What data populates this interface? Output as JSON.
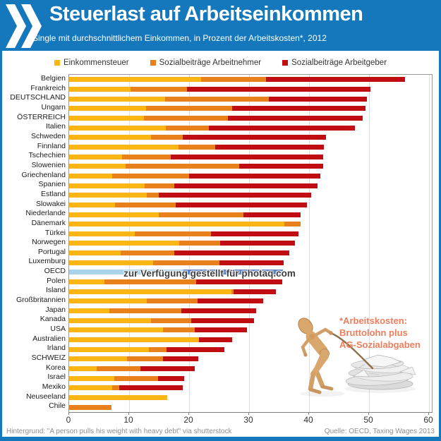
{
  "header": {
    "title": "Steuerlast auf Arbeitseinkommen",
    "subtitle": "Single mit durchschnittlichem Einkommen, in Prozent der Arbeitskosten*, 2012",
    "logo": "oecd-chevrons",
    "background_color": "#1578BC"
  },
  "legend": [
    {
      "label": "Einkommensteuer",
      "color": "#FBB616"
    },
    {
      "label": "Sozialbeiträge Arbeitnehmer",
      "color": "#E8801B"
    },
    {
      "label": "Sozialbeiträge Arbeitgeber",
      "color": "#C00D12"
    }
  ],
  "chart_data": {
    "type": "bar",
    "orientation": "horizontal",
    "stacked": true,
    "series_names": [
      "Einkommensteuer",
      "Sozialbeiträge Arbeitnehmer",
      "Sozialbeiträge Arbeitgeber"
    ],
    "series_colors": [
      "#FBB616",
      "#E8801B",
      "#C00D12"
    ],
    "xlabel": "",
    "ylabel": "",
    "xlim": [
      0,
      60
    ],
    "x_ticks": [
      0,
      10,
      20,
      30,
      40,
      50,
      60
    ],
    "grid": "vertical-light",
    "rows": [
      {
        "label": "Belgien",
        "values": [
          22.0,
          10.8,
          23.2
        ]
      },
      {
        "label": "Frankreich",
        "values": [
          10.2,
          9.5,
          30.5
        ]
      },
      {
        "label": "DEUTSCHLAND",
        "values": [
          16.0,
          17.3,
          16.4
        ]
      },
      {
        "label": "Ungarn",
        "values": [
          12.8,
          14.4,
          22.2
        ]
      },
      {
        "label": "ÖSTERREICH",
        "values": [
          12.5,
          14.0,
          22.4
        ]
      },
      {
        "label": "Italien",
        "values": [
          16.1,
          7.2,
          24.3
        ]
      },
      {
        "label": "Schweden",
        "values": [
          13.6,
          5.3,
          23.9
        ]
      },
      {
        "label": "Finnland",
        "values": [
          18.2,
          6.1,
          18.2
        ]
      },
      {
        "label": "Tschechien",
        "values": [
          8.8,
          8.2,
          25.4
        ]
      },
      {
        "label": "Slowenien",
        "values": [
          9.4,
          19.0,
          13.9
        ]
      },
      {
        "label": "Griechenland",
        "values": [
          7.2,
          12.8,
          21.9
        ]
      },
      {
        "label": "Spanien",
        "values": [
          12.6,
          4.9,
          23.9
        ]
      },
      {
        "label": "Estland",
        "values": [
          12.9,
          2.1,
          25.4
        ]
      },
      {
        "label": "Slowakei",
        "values": [
          7.6,
          10.2,
          21.8
        ]
      },
      {
        "label": "Niederlande",
        "values": [
          14.9,
          14.2,
          9.5
        ]
      },
      {
        "label": "Dänemark",
        "values": [
          35.9,
          2.7,
          0.0
        ]
      },
      {
        "label": "Türkei",
        "values": [
          10.9,
          12.8,
          14.5
        ]
      },
      {
        "label": "Norwegen",
        "values": [
          18.4,
          6.8,
          12.4
        ]
      },
      {
        "label": "Portugal",
        "values": [
          8.6,
          8.9,
          19.2
        ]
      },
      {
        "label": "Luxemburg",
        "values": [
          14.0,
          11.0,
          10.8
        ]
      },
      {
        "label": "OECD",
        "highlight": true,
        "total": 35.6,
        "split": 19.0,
        "colors": [
          "#A9D4E9",
          "#5E82C4"
        ]
      },
      {
        "label": "Polen",
        "values": [
          5.9,
          15.3,
          14.3
        ]
      },
      {
        "label": "Island",
        "values": [
          27.1,
          0.3,
          7.1
        ]
      },
      {
        "label": "Großbritannien",
        "values": [
          12.9,
          8.5,
          10.9
        ]
      },
      {
        "label": "Japan",
        "values": [
          6.7,
          12.0,
          12.5
        ]
      },
      {
        "label": "Kanada",
        "values": [
          13.7,
          6.6,
          10.5
        ]
      },
      {
        "label": "USA",
        "values": [
          15.6,
          5.3,
          8.7
        ]
      },
      {
        "label": "Australien",
        "values": [
          21.6,
          0.0,
          5.6
        ]
      },
      {
        "label": "Irland",
        "values": [
          13.3,
          2.9,
          9.7
        ]
      },
      {
        "label": "SCHWEIZ",
        "values": [
          9.7,
          5.9,
          5.9
        ]
      },
      {
        "label": "Korea",
        "values": [
          4.6,
          7.3,
          9.1
        ]
      },
      {
        "label": "Israel",
        "values": [
          7.5,
          7.3,
          4.4
        ]
      },
      {
        "label": "Mexiko",
        "values": [
          7.2,
          1.2,
          10.6
        ]
      },
      {
        "label": "Neuseeland",
        "values": [
          16.4,
          0.0,
          0.0
        ]
      },
      {
        "label": "Chile",
        "values": [
          0.0,
          7.0,
          0.0
        ]
      }
    ]
  },
  "watermark": {
    "text": "zur Verfügung gestellt für photaq.com"
  },
  "annotation": {
    "lines": [
      "*Arbeitskosten:",
      "Bruttolohn plus",
      "AG-Sozialabgaben"
    ],
    "color": "#EF7D5B"
  },
  "illustration": "wooden mannequin pulling a heavy stack of newspapers on a rope",
  "footer": {
    "left": "Hintergrund: \"A person pulls his weight with heavy debt\" via shutterstock",
    "right": "Quelle: OECD, Taxing Wages 2013"
  }
}
